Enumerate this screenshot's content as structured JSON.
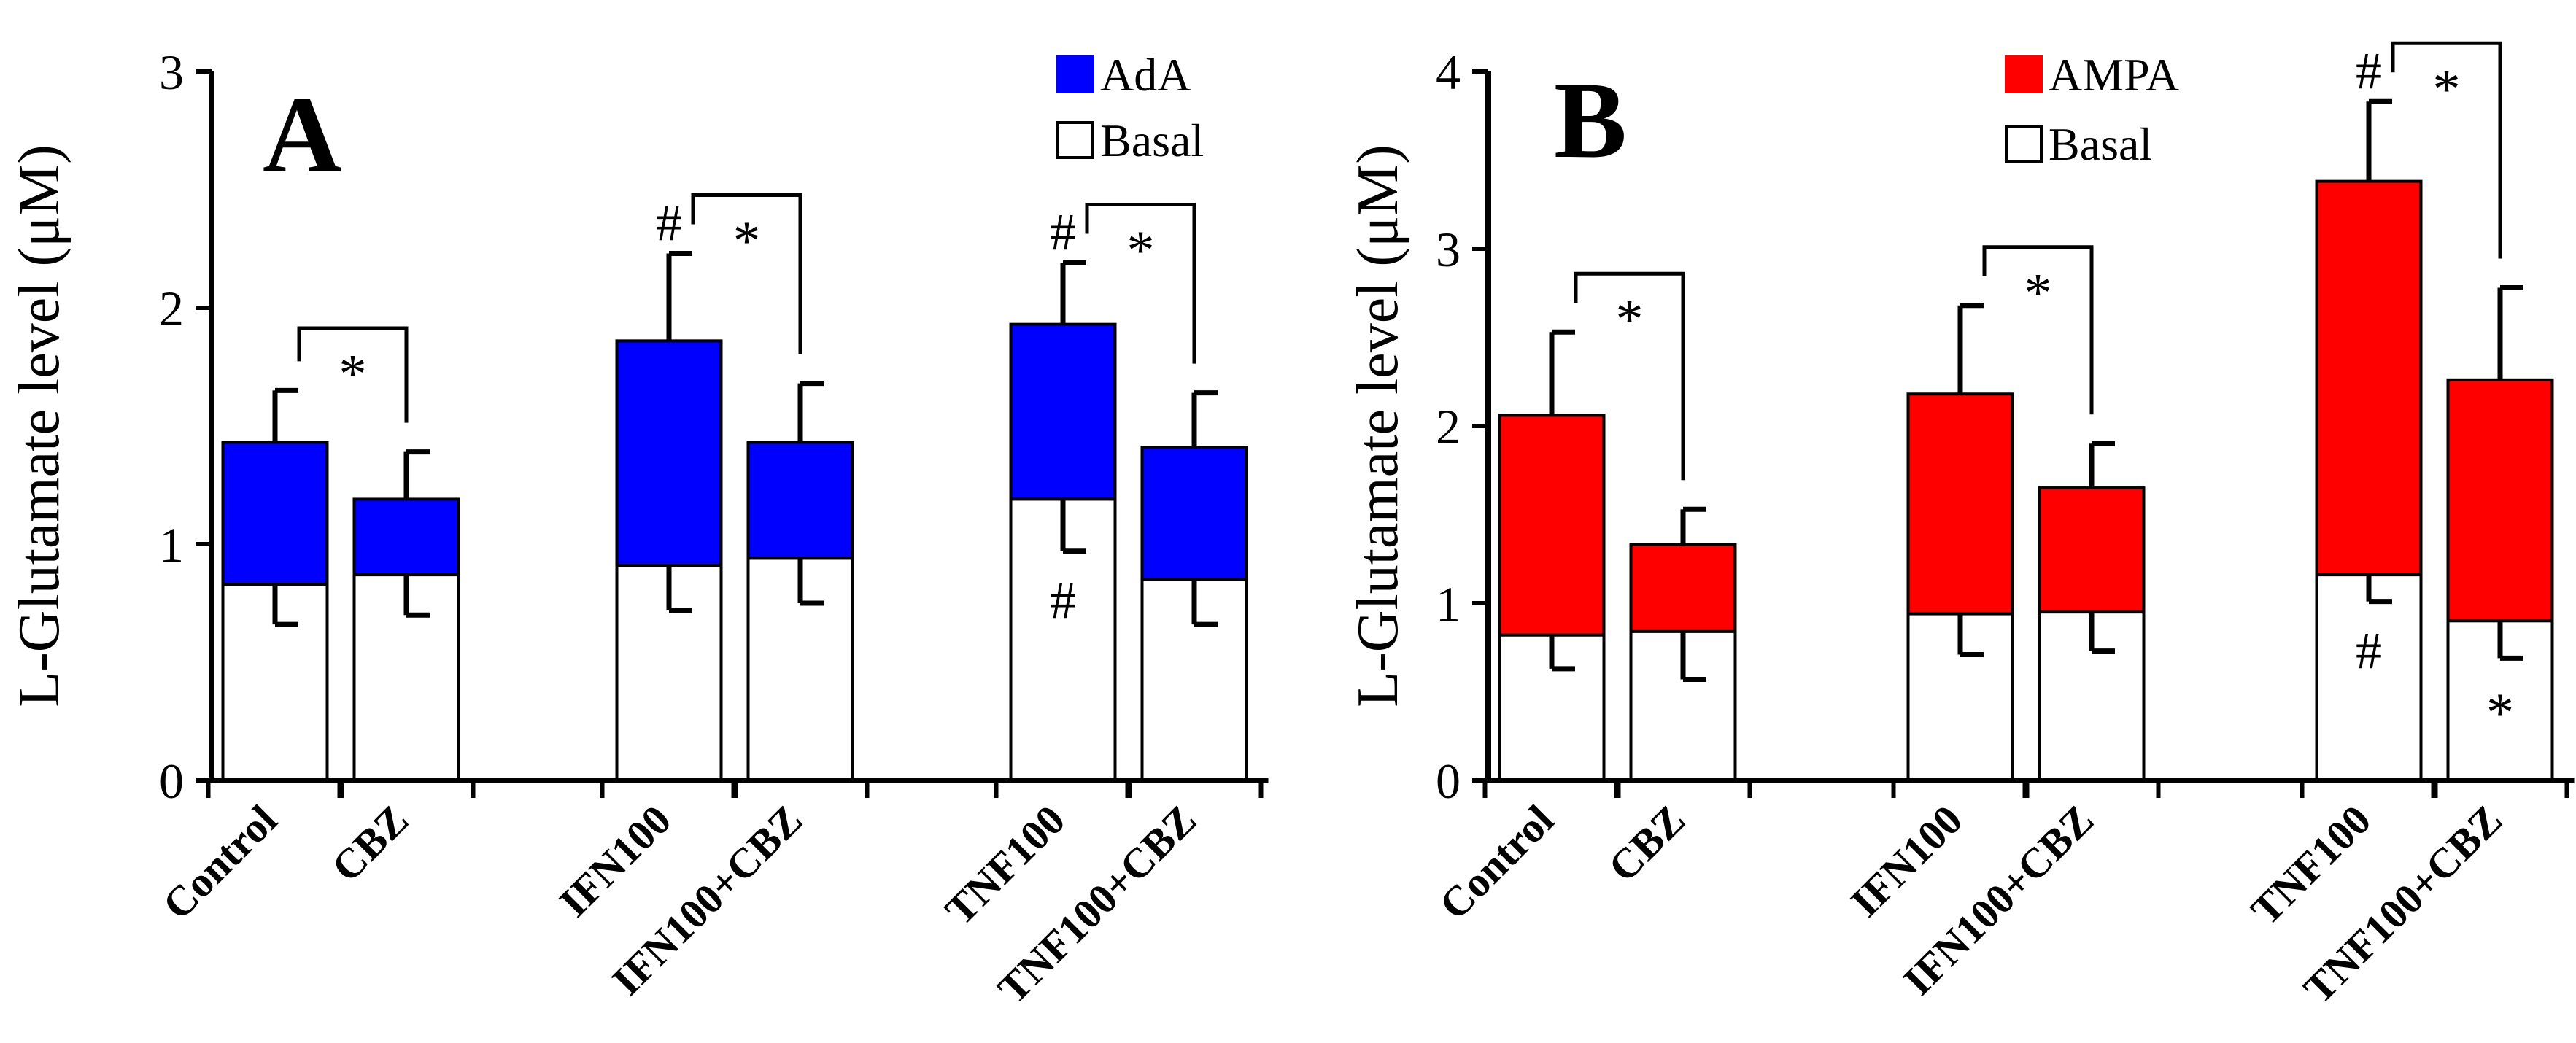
{
  "chart_data": [
    {
      "type": "bar",
      "panel_label": "A",
      "ylabel": "L-Glutamate level (μM)",
      "ylim": [
        0,
        3
      ],
      "yticks": [
        0,
        1,
        2,
        3
      ],
      "categories": [
        "Control",
        "CBZ",
        "IFN100",
        "IFN100+CBZ",
        "TNF100",
        "TNF100+CBZ"
      ],
      "series": [
        {
          "name": "AdA",
          "color": "#0000ff",
          "values": [
            1.43,
            1.19,
            1.86,
            1.43,
            1.93,
            1.41
          ],
          "error": [
            0.22,
            0.2,
            0.37,
            0.25,
            0.26,
            0.23
          ]
        },
        {
          "name": "Basal",
          "color": "#ffffff",
          "values": [
            0.83,
            0.87,
            0.91,
            0.94,
            1.19,
            0.85
          ],
          "error": [
            0.17,
            0.17,
            0.19,
            0.19,
            0.22,
            0.19
          ]
        }
      ],
      "annotations": {
        "hash_top": [
          "IFN100",
          "TNF100"
        ],
        "hash_basal": [
          "TNF100"
        ],
        "star_basal": [],
        "brackets": [
          [
            "Control",
            "CBZ"
          ],
          [
            "IFN100",
            "IFN100+CBZ"
          ],
          [
            "TNF100",
            "TNF100+CBZ"
          ]
        ],
        "hash_text": "#",
        "star_text": "*"
      }
    },
    {
      "type": "bar",
      "panel_label": "B",
      "ylabel": "L-Glutamate level (μM)",
      "ylim": [
        0,
        4
      ],
      "yticks": [
        0,
        1,
        2,
        3,
        4
      ],
      "categories": [
        "Control",
        "CBZ",
        "IFN100",
        "IFN100+CBZ",
        "TNF100",
        "TNF100+CBZ"
      ],
      "series": [
        {
          "name": "AMPA",
          "color": "#ff0000",
          "values": [
            2.06,
            1.33,
            2.18,
            1.65,
            3.38,
            2.26
          ],
          "error": [
            0.47,
            0.2,
            0.5,
            0.25,
            0.45,
            0.52
          ]
        },
        {
          "name": "Basal",
          "color": "#ffffff",
          "values": [
            0.82,
            0.84,
            0.94,
            0.95,
            1.16,
            0.9
          ],
          "error": [
            0.19,
            0.27,
            0.23,
            0.22,
            0.15,
            0.21
          ]
        }
      ],
      "annotations": {
        "hash_top": [
          "TNF100"
        ],
        "hash_basal": [
          "TNF100"
        ],
        "star_basal": [
          "TNF100+CBZ"
        ],
        "brackets": [
          [
            "Control",
            "CBZ"
          ],
          [
            "IFN100",
            "IFN100+CBZ"
          ],
          [
            "TNF100",
            "TNF100+CBZ"
          ]
        ],
        "hash_text": "#",
        "star_text": "*"
      }
    }
  ]
}
